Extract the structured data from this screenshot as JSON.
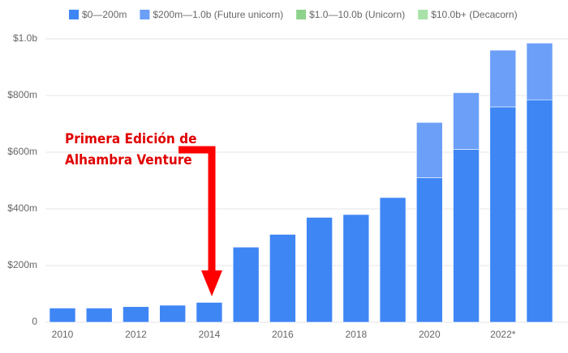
{
  "chart_data": {
    "type": "stacked_bar",
    "categories": [
      "2010",
      null,
      "2012",
      null,
      "2014",
      null,
      "2016",
      null,
      "2018",
      null,
      "2020",
      null,
      "2022*",
      null
    ],
    "series": [
      {
        "name": "$0—200m",
        "color": "#3f86f5",
        "values": [
          50,
          50,
          55,
          60,
          70,
          265,
          310,
          370,
          380,
          440,
          510,
          610,
          760,
          785
        ]
      },
      {
        "name": "$200m—1.0b (Future unicorn)",
        "color": "#6b9ff8",
        "values": [
          0,
          0,
          0,
          0,
          0,
          0,
          0,
          0,
          0,
          0,
          195,
          200,
          200,
          200
        ]
      },
      {
        "name": "$1.0—10.0b (Unicorn)",
        "color": "#8ed28e",
        "values": [
          0,
          0,
          0,
          0,
          0,
          0,
          0,
          0,
          0,
          0,
          0,
          0,
          0,
          0
        ]
      },
      {
        "name": "$10.0b+ (Decacorn)",
        "color": "#a9e2a9",
        "values": [
          0,
          0,
          0,
          0,
          0,
          0,
          0,
          0,
          0,
          0,
          0,
          0,
          0,
          0
        ]
      }
    ],
    "ylim": [
      0,
      1000
    ],
    "yticks": [
      0,
      {
        "value": 200,
        "label": "$200m"
      },
      {
        "value": 400,
        "label": "$400m"
      },
      {
        "value": 600,
        "label": "$600m"
      },
      {
        "value": 800,
        "label": "$800m"
      },
      {
        "value": 1000,
        "label": "$1.0b"
      }
    ],
    "grid": true,
    "annotation": [
      "Primera Edición de",
      "Alhambra Venture"
    ]
  }
}
